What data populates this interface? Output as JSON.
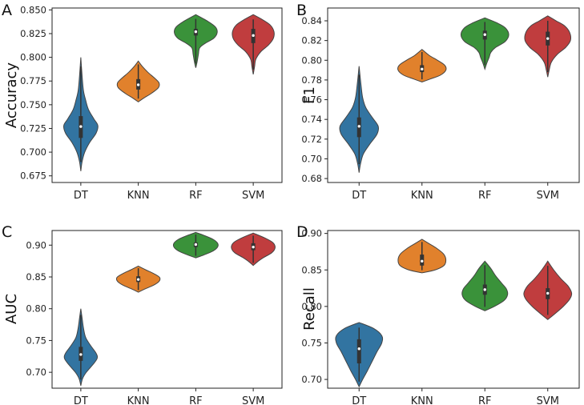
{
  "chart_data": [
    {
      "panel": "A",
      "type": "violin",
      "ylabel": "Accuracy",
      "categories": [
        "DT",
        "KNN",
        "RF",
        "SVM"
      ],
      "colors": [
        "#3274a1",
        "#e1812c",
        "#3a923a",
        "#c03d3e"
      ],
      "ylim": [
        0.668,
        0.852
      ],
      "yticks": [
        0.675,
        0.7,
        0.725,
        0.75,
        0.775,
        0.8,
        0.825,
        0.85
      ],
      "ytick_labels": [
        "0.675",
        "0.700",
        "0.725",
        "0.750",
        "0.775",
        "0.800",
        "0.825",
        "0.850"
      ],
      "series": [
        {
          "name": "DT",
          "min": 0.68,
          "max": 0.8,
          "q1": 0.715,
          "median": 0.727,
          "q3": 0.738,
          "profile": [
            [
              0.68,
              0.0
            ],
            [
              0.69,
              0.06
            ],
            [
              0.7,
              0.18
            ],
            [
              0.71,
              0.4
            ],
            [
              0.72,
              0.7
            ],
            [
              0.728,
              0.78
            ],
            [
              0.735,
              0.6
            ],
            [
              0.745,
              0.35
            ],
            [
              0.755,
              0.22
            ],
            [
              0.765,
              0.12
            ],
            [
              0.78,
              0.06
            ],
            [
              0.8,
              0.0
            ]
          ]
        },
        {
          "name": "KNN",
          "min": 0.753,
          "max": 0.796,
          "q1": 0.766,
          "median": 0.771,
          "q3": 0.777,
          "profile": [
            [
              0.753,
              0.0
            ],
            [
              0.757,
              0.25
            ],
            [
              0.762,
              0.6
            ],
            [
              0.768,
              0.92
            ],
            [
              0.773,
              0.95
            ],
            [
              0.778,
              0.75
            ],
            [
              0.784,
              0.45
            ],
            [
              0.79,
              0.2
            ],
            [
              0.796,
              0.0
            ]
          ]
        },
        {
          "name": "RF",
          "min": 0.789,
          "max": 0.845,
          "q1": 0.823,
          "median": 0.827,
          "q3": 0.83,
          "profile": [
            [
              0.789,
              0.0
            ],
            [
              0.795,
              0.06
            ],
            [
              0.803,
              0.12
            ],
            [
              0.81,
              0.18
            ],
            [
              0.815,
              0.45
            ],
            [
              0.82,
              0.82
            ],
            [
              0.826,
              0.98
            ],
            [
              0.832,
              0.9
            ],
            [
              0.838,
              0.55
            ],
            [
              0.845,
              0.0
            ]
          ]
        },
        {
          "name": "SVM",
          "min": 0.782,
          "max": 0.845,
          "q1": 0.815,
          "median": 0.823,
          "q3": 0.83,
          "profile": [
            [
              0.782,
              0.0
            ],
            [
              0.79,
              0.06
            ],
            [
              0.798,
              0.12
            ],
            [
              0.806,
              0.35
            ],
            [
              0.813,
              0.7
            ],
            [
              0.82,
              0.92
            ],
            [
              0.827,
              0.95
            ],
            [
              0.834,
              0.78
            ],
            [
              0.84,
              0.4
            ],
            [
              0.845,
              0.0
            ]
          ]
        }
      ]
    },
    {
      "panel": "B",
      "type": "violin",
      "ylabel": "F1",
      "categories": [
        "DT",
        "KNN",
        "RF",
        "SVM"
      ],
      "colors": [
        "#3274a1",
        "#e1812c",
        "#3a923a",
        "#c03d3e"
      ],
      "ylim": [
        0.676,
        0.853
      ],
      "yticks": [
        0.68,
        0.7,
        0.72,
        0.74,
        0.76,
        0.78,
        0.8,
        0.82,
        0.84
      ],
      "ytick_labels": [
        "0.68",
        "0.70",
        "0.72",
        "0.74",
        "0.76",
        "0.78",
        "0.80",
        "0.82",
        "0.84"
      ],
      "series": [
        {
          "name": "DT",
          "min": 0.686,
          "max": 0.794,
          "q1": 0.722,
          "median": 0.733,
          "q3": 0.742,
          "profile": [
            [
              0.686,
              0.0
            ],
            [
              0.695,
              0.06
            ],
            [
              0.705,
              0.18
            ],
            [
              0.715,
              0.45
            ],
            [
              0.725,
              0.75
            ],
            [
              0.733,
              0.8
            ],
            [
              0.742,
              0.55
            ],
            [
              0.752,
              0.28
            ],
            [
              0.762,
              0.15
            ],
            [
              0.775,
              0.08
            ],
            [
              0.794,
              0.0
            ]
          ]
        },
        {
          "name": "KNN",
          "min": 0.778,
          "max": 0.811,
          "q1": 0.788,
          "median": 0.791,
          "q3": 0.795,
          "profile": [
            [
              0.778,
              0.0
            ],
            [
              0.781,
              0.35
            ],
            [
              0.785,
              0.78
            ],
            [
              0.79,
              1.0
            ],
            [
              0.795,
              0.95
            ],
            [
              0.8,
              0.65
            ],
            [
              0.805,
              0.3
            ],
            [
              0.811,
              0.0
            ]
          ]
        },
        {
          "name": "RF",
          "min": 0.791,
          "max": 0.843,
          "q1": 0.821,
          "median": 0.826,
          "q3": 0.83,
          "profile": [
            [
              0.791,
              0.0
            ],
            [
              0.797,
              0.08
            ],
            [
              0.803,
              0.18
            ],
            [
              0.808,
              0.25
            ],
            [
              0.813,
              0.45
            ],
            [
              0.819,
              0.85
            ],
            [
              0.826,
              1.0
            ],
            [
              0.833,
              0.85
            ],
            [
              0.838,
              0.5
            ],
            [
              0.843,
              0.0
            ]
          ]
        },
        {
          "name": "SVM",
          "min": 0.783,
          "max": 0.845,
          "q1": 0.815,
          "median": 0.822,
          "q3": 0.829,
          "profile": [
            [
              0.783,
              0.0
            ],
            [
              0.79,
              0.06
            ],
            [
              0.798,
              0.15
            ],
            [
              0.806,
              0.4
            ],
            [
              0.813,
              0.75
            ],
            [
              0.82,
              0.95
            ],
            [
              0.828,
              0.92
            ],
            [
              0.835,
              0.7
            ],
            [
              0.84,
              0.35
            ],
            [
              0.845,
              0.0
            ]
          ]
        }
      ]
    },
    {
      "panel": "C",
      "type": "violin",
      "ylabel": "AUC",
      "categories": [
        "DT",
        "KNN",
        "RF",
        "SVM"
      ],
      "colors": [
        "#3274a1",
        "#e1812c",
        "#3a923a",
        "#c03d3e"
      ],
      "ylim": [
        0.675,
        0.923
      ],
      "yticks": [
        0.7,
        0.75,
        0.8,
        0.85,
        0.9
      ],
      "ytick_labels": [
        "0.70",
        "0.75",
        "0.80",
        "0.85",
        "0.90"
      ],
      "series": [
        {
          "name": "DT",
          "min": 0.679,
          "max": 0.8,
          "q1": 0.718,
          "median": 0.728,
          "q3": 0.74,
          "profile": [
            [
              0.679,
              0.0
            ],
            [
              0.69,
              0.08
            ],
            [
              0.7,
              0.25
            ],
            [
              0.712,
              0.55
            ],
            [
              0.722,
              0.75
            ],
            [
              0.73,
              0.7
            ],
            [
              0.742,
              0.45
            ],
            [
              0.755,
              0.22
            ],
            [
              0.77,
              0.12
            ],
            [
              0.785,
              0.06
            ],
            [
              0.8,
              0.0
            ]
          ]
        },
        {
          "name": "KNN",
          "min": 0.826,
          "max": 0.867,
          "q1": 0.842,
          "median": 0.846,
          "q3": 0.851,
          "profile": [
            [
              0.826,
              0.0
            ],
            [
              0.831,
              0.3
            ],
            [
              0.837,
              0.7
            ],
            [
              0.843,
              0.95
            ],
            [
              0.849,
              0.98
            ],
            [
              0.855,
              0.72
            ],
            [
              0.861,
              0.35
            ],
            [
              0.867,
              0.0
            ]
          ]
        },
        {
          "name": "RF",
          "min": 0.88,
          "max": 0.92,
          "q1": 0.897,
          "median": 0.901,
          "q3": 0.904,
          "profile": [
            [
              0.88,
              0.0
            ],
            [
              0.885,
              0.4
            ],
            [
              0.891,
              0.8
            ],
            [
              0.897,
              1.0
            ],
            [
              0.903,
              1.0
            ],
            [
              0.909,
              0.8
            ],
            [
              0.915,
              0.4
            ],
            [
              0.92,
              0.0
            ]
          ]
        },
        {
          "name": "SVM",
          "min": 0.868,
          "max": 0.919,
          "q1": 0.892,
          "median": 0.897,
          "q3": 0.903,
          "profile": [
            [
              0.868,
              0.0
            ],
            [
              0.874,
              0.2
            ],
            [
              0.881,
              0.5
            ],
            [
              0.888,
              0.85
            ],
            [
              0.896,
              1.0
            ],
            [
              0.904,
              0.9
            ],
            [
              0.911,
              0.55
            ],
            [
              0.919,
              0.0
            ]
          ]
        }
      ]
    },
    {
      "panel": "D",
      "type": "violin",
      "ylabel": "Recall",
      "categories": [
        "DT",
        "KNN",
        "RF",
        "SVM"
      ],
      "colors": [
        "#3274a1",
        "#e1812c",
        "#3a923a",
        "#c03d3e"
      ],
      "ylim": [
        0.688,
        0.904
      ],
      "yticks": [
        0.7,
        0.75,
        0.8,
        0.85,
        0.9
      ],
      "ytick_labels": [
        "0.70",
        "0.75",
        "0.80",
        "0.85",
        "0.90"
      ],
      "series": [
        {
          "name": "DT",
          "min": 0.69,
          "max": 0.778,
          "q1": 0.722,
          "median": 0.742,
          "q3": 0.755,
          "profile": [
            [
              0.69,
              0.0
            ],
            [
              0.7,
              0.15
            ],
            [
              0.712,
              0.35
            ],
            [
              0.725,
              0.55
            ],
            [
              0.738,
              0.75
            ],
            [
              0.75,
              0.95
            ],
            [
              0.76,
              0.95
            ],
            [
              0.77,
              0.6
            ],
            [
              0.778,
              0.0
            ]
          ]
        },
        {
          "name": "KNN",
          "min": 0.846,
          "max": 0.892,
          "q1": 0.856,
          "median": 0.862,
          "q3": 0.871,
          "profile": [
            [
              0.846,
              0.0
            ],
            [
              0.85,
              0.55
            ],
            [
              0.856,
              0.92
            ],
            [
              0.864,
              1.0
            ],
            [
              0.872,
              0.9
            ],
            [
              0.88,
              0.6
            ],
            [
              0.886,
              0.3
            ],
            [
              0.892,
              0.0
            ]
          ]
        },
        {
          "name": "RF",
          "min": 0.794,
          "max": 0.862,
          "q1": 0.816,
          "median": 0.823,
          "q3": 0.83,
          "profile": [
            [
              0.794,
              0.0
            ],
            [
              0.8,
              0.4
            ],
            [
              0.808,
              0.8
            ],
            [
              0.816,
              0.95
            ],
            [
              0.824,
              0.9
            ],
            [
              0.832,
              0.7
            ],
            [
              0.842,
              0.45
            ],
            [
              0.852,
              0.25
            ],
            [
              0.862,
              0.0
            ]
          ]
        },
        {
          "name": "SVM",
          "min": 0.782,
          "max": 0.862,
          "q1": 0.81,
          "median": 0.818,
          "q3": 0.825,
          "profile": [
            [
              0.782,
              0.0
            ],
            [
              0.79,
              0.3
            ],
            [
              0.8,
              0.65
            ],
            [
              0.81,
              0.92
            ],
            [
              0.818,
              1.0
            ],
            [
              0.828,
              0.85
            ],
            [
              0.838,
              0.55
            ],
            [
              0.85,
              0.25
            ],
            [
              0.862,
              0.0
            ]
          ]
        }
      ]
    }
  ]
}
